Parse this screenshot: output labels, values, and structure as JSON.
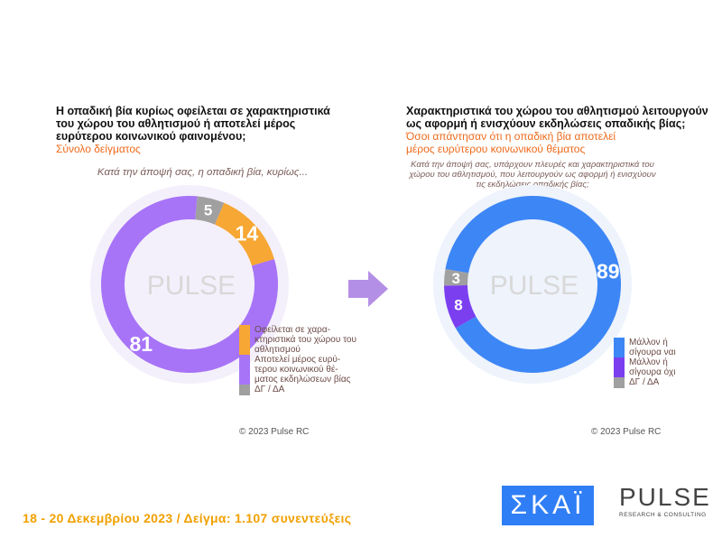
{
  "chart_data": [
    {
      "type": "pie",
      "title": "Η οπαδική βία κυρίως οφείλεται σε χαρακτηριστικά του χώρου του αθλητισμού ή αποτελεί μέρος ευρύτερου κοινωνικού φαινομένου;",
      "subtitle": "Σύνολο δείγματος",
      "question": "Κατά την άποψή σας, η οπαδική βία, κυρίως...",
      "slices": [
        {
          "name": "ΔΓ / ΔΑ",
          "value": 5,
          "color": "#a0a0a0"
        },
        {
          "name": "Οφείλεται σε χαρακτηριστικά του χώρου του αθλητισμού",
          "value": 14,
          "color": "#f7a733"
        },
        {
          "name": "Αποτελεί μέρος ευρύτερου κοινωνικού θέματος εκδηλώσεων βίας",
          "value": 81,
          "color": "#a774f7"
        }
      ],
      "legend": [
        "Οφείλεται σε χαρα-κτηριστικά του χώρου του αθλητισμού",
        "Αποτελεί μέρος ευρύ-τερου κοινωνικού θέ-ματος εκδηλώσεων βίας",
        "ΔΓ / ΔΑ"
      ],
      "legend_position": "bottom-right",
      "copyright": "© 2023 Pulse RC"
    },
    {
      "type": "pie",
      "title": "Χαρακτηριστικά του χώρου του αθλητισμού λειτουργούν ως αφορμή ή ενισχύουν εκδηλώσεις οπαδικής βίας;",
      "subtitle": "Όσοι απάντησαν ότι η οπαδική βία αποτελεί μέρος ευρύτερου κοινωνικού θέματος",
      "question": "Κατά την άποψή σας, υπάρχουν πλευρές και χαρακτηριστικά του χώρου του αθλητισμού, που λειτουργούν ως αφορμή ή ενισχύουν τις εκδηλώσεις οπαδικής βίας;",
      "slices": [
        {
          "name": "Μάλλον ή σίγουρα ναι",
          "value": 89,
          "color": "#3d86f5"
        },
        {
          "name": "Μάλλον ή σίγουρα όχι",
          "value": 8,
          "color": "#7b3ff0"
        },
        {
          "name": "ΔΓ / ΔΑ",
          "value": 3,
          "color": "#a0a0a0"
        }
      ],
      "legend": [
        "Μάλλον ή σίγουρα ναι",
        "Μάλλον ή σίγουρα όχι",
        "ΔΓ / ΔΑ"
      ],
      "legend_position": "bottom-right",
      "copyright": "© 2023 Pulse RC"
    }
  ],
  "footer": "18 - 20 Δεκεμβρίου  2023  /  Δείγμα:  1.107 συνεντεύξεις",
  "logos": {
    "skai": "ΣΚΑΪ",
    "pulse": "PULSE",
    "pulse_sub": "RESEARCH & CONSULTING",
    "watermark": "PULSE"
  },
  "arrow_color": "#b48fe6"
}
